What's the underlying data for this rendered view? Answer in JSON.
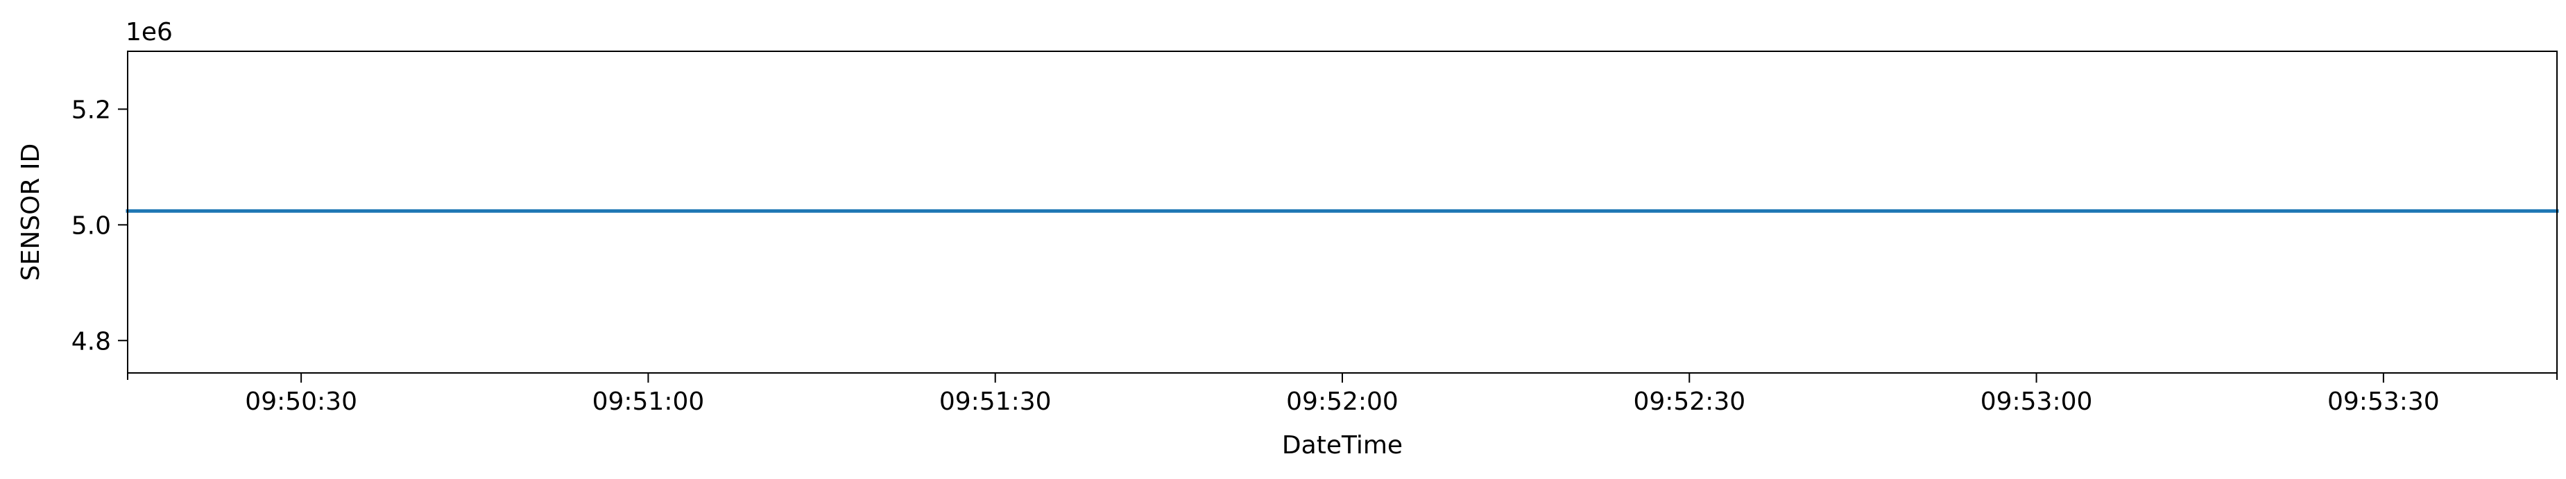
{
  "chart_data": {
    "type": "line",
    "title": "",
    "xlabel": "DateTime",
    "ylabel": "SENSOR ID",
    "y_offset_label": "1e6",
    "x_tick_labels": [
      "09:50:30",
      "09:51:00",
      "09:51:30",
      "09:52:00",
      "09:52:30",
      "09:53:00",
      "09:53:30"
    ],
    "y_tick_labels": [
      "4.8",
      "5.0",
      "5.2"
    ],
    "x_ticks": [
      "09:50:30",
      "09:51:00",
      "09:51:30",
      "09:52:00",
      "09:52:30",
      "09:53:00",
      "09:53:30"
    ],
    "y_ticks": [
      4800000,
      5000000,
      5200000
    ],
    "xlim": [
      "09:50:15",
      "09:53:45"
    ],
    "ylim": [
      4744000,
      5300000
    ],
    "grid": false,
    "series": [
      {
        "color": "#1f77b4",
        "x": [
          "09:50:15",
          "09:53:45"
        ],
        "y": [
          5024000,
          5024000
        ]
      }
    ]
  }
}
